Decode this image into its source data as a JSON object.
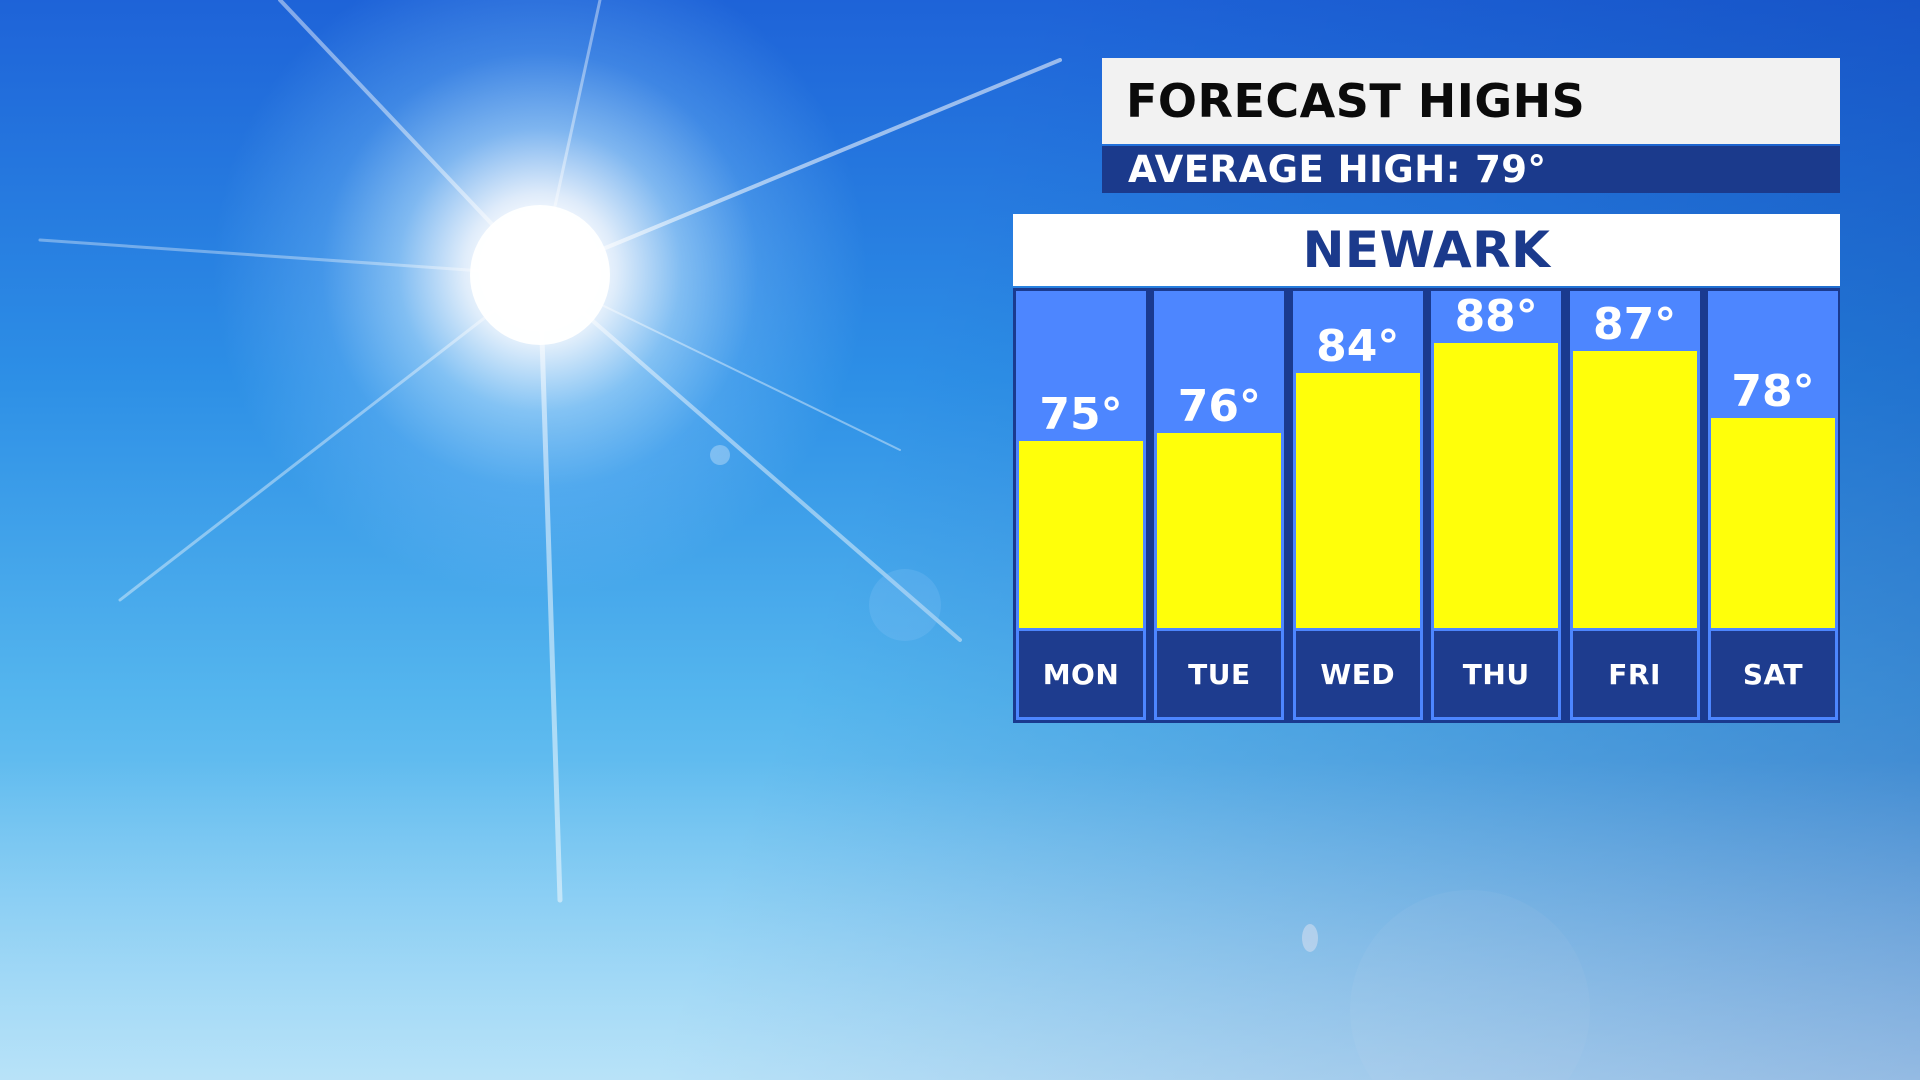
{
  "header": {
    "title": "FORECAST HIGHS",
    "average_label": "AVERAGE HIGH:",
    "average_value": "79°"
  },
  "location": "NEWARK",
  "colors": {
    "bar": "#ffff0a",
    "column_bg": "#4d86ff",
    "frame": "#1a3a8f",
    "title_panel": "#f2f2f2",
    "subtitle_panel": "#1b3a8c"
  },
  "chart_data": {
    "type": "bar",
    "title": "FORECAST HIGHS",
    "subtitle": "NEWARK",
    "categories": [
      "MON",
      "TUE",
      "WED",
      "THU",
      "FRI",
      "SAT"
    ],
    "values": [
      75,
      76,
      84,
      88,
      87,
      78
    ],
    "value_labels": [
      "75°",
      "76°",
      "84°",
      "88°",
      "87°",
      "78°"
    ],
    "unit": "°",
    "reference": {
      "label": "AVERAGE HIGH:",
      "value": 79
    },
    "ylim": [
      50,
      95
    ],
    "grid": false,
    "legend": "none"
  }
}
